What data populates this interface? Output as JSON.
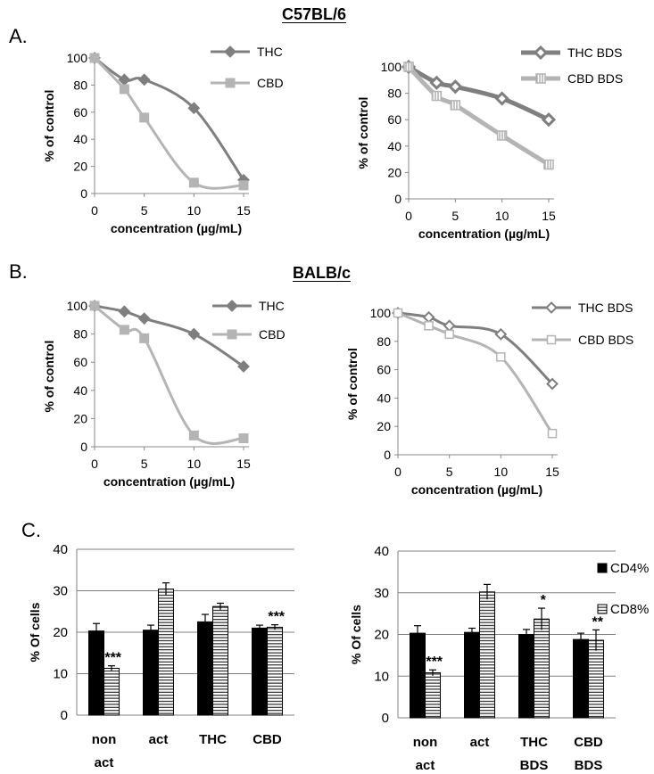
{
  "headings": {
    "strain1": "C57BL/6",
    "strain2": "BALB/c"
  },
  "panel_letters": {
    "a": "A.",
    "b": "B.",
    "c": "C."
  },
  "colors": {
    "thc": "#7f7f7f",
    "cbd": "#b4b4b4",
    "cd4": "#000000",
    "cd8": "#ffffff"
  },
  "chart_data": [
    {
      "id": "a_left",
      "type": "line",
      "title": "",
      "xlabel": "concentration (µg/mL)",
      "ylabel": "% of control",
      "xlim": [
        0,
        15
      ],
      "ylim": [
        0,
        100
      ],
      "xticks": [
        "0",
        "5",
        "10",
        "15"
      ],
      "yticks": [
        "0",
        "20",
        "40",
        "60",
        "80",
        "100"
      ],
      "legend_position": "top-right",
      "series": [
        {
          "name": "THC",
          "marker": "diamond-filled",
          "x": [
            0,
            3,
            5,
            10,
            15
          ],
          "values": [
            100,
            84,
            84,
            63,
            10
          ]
        },
        {
          "name": "CBD",
          "marker": "square-filled",
          "x": [
            0,
            3,
            5,
            10,
            15
          ],
          "values": [
            100,
            77,
            56,
            8,
            6
          ]
        }
      ]
    },
    {
      "id": "a_right",
      "type": "line",
      "title": "",
      "xlabel": "concentration (µg/mL)",
      "ylabel": "% of control",
      "xlim": [
        0,
        15
      ],
      "ylim": [
        0,
        100
      ],
      "xticks": [
        "0",
        "5",
        "10",
        "15"
      ],
      "yticks": [
        "0",
        "20",
        "40",
        "60",
        "80",
        "100"
      ],
      "legend_position": "top-right",
      "series": [
        {
          "name": "THC BDS",
          "marker": "diamond-hatched",
          "x": [
            0,
            3,
            5,
            10,
            15
          ],
          "values": [
            100,
            88,
            85,
            76,
            60
          ]
        },
        {
          "name": "CBD BDS",
          "marker": "square-hatched",
          "x": [
            0,
            3,
            5,
            10,
            15
          ],
          "values": [
            100,
            78,
            71,
            48,
            26
          ]
        }
      ]
    },
    {
      "id": "b_left",
      "type": "line",
      "title": "",
      "xlabel": "concentration (µg/mL)",
      "ylabel": "% of control",
      "xlim": [
        0,
        15
      ],
      "ylim": [
        0,
        100
      ],
      "xticks": [
        "0",
        "5",
        "10",
        "15"
      ],
      "yticks": [
        "0",
        "20",
        "40",
        "60",
        "80",
        "100"
      ],
      "legend_position": "top-right",
      "series": [
        {
          "name": "THC",
          "marker": "diamond-filled",
          "x": [
            0,
            3,
            5,
            10,
            15
          ],
          "values": [
            100,
            96,
            91,
            80,
            57
          ]
        },
        {
          "name": "CBD",
          "marker": "square-filled",
          "x": [
            0,
            3,
            5,
            10,
            15
          ],
          "values": [
            100,
            83,
            77,
            8,
            6
          ]
        }
      ]
    },
    {
      "id": "b_right",
      "type": "line",
      "title": "",
      "xlabel": "concentration (µg/mL)",
      "ylabel": "% of control",
      "xlim": [
        0,
        15
      ],
      "ylim": [
        0,
        100
      ],
      "xticks": [
        "0",
        "5",
        "10",
        "15"
      ],
      "yticks": [
        "0",
        "20",
        "40",
        "60",
        "80",
        "100"
      ],
      "legend_position": "top-right",
      "series": [
        {
          "name": "THC BDS",
          "marker": "diamond-open",
          "x": [
            0,
            3,
            5,
            10,
            15
          ],
          "values": [
            100,
            97,
            91,
            85,
            50
          ]
        },
        {
          "name": "CBD BDS",
          "marker": "square-open",
          "x": [
            0,
            3,
            5,
            10,
            15
          ],
          "values": [
            100,
            91,
            85,
            69,
            15
          ]
        }
      ]
    },
    {
      "id": "c_left",
      "type": "bar",
      "title": "",
      "xlabel": "",
      "ylabel": "% Of cells",
      "ylim": [
        0,
        40
      ],
      "yticks": [
        "0",
        "10",
        "20",
        "30",
        "40"
      ],
      "grid": true,
      "categories": [
        [
          "non",
          "act"
        ],
        [
          "act"
        ],
        [
          "THC"
        ],
        [
          "CBD"
        ]
      ],
      "series": [
        {
          "name": "CD4%",
          "values": [
            20.3,
            20.5,
            22.5,
            21.0
          ],
          "errors": [
            1.8,
            1.2,
            1.8,
            0.7
          ]
        },
        {
          "name": "CD8%",
          "values": [
            11.3,
            30.4,
            26.2,
            21.2
          ],
          "errors": [
            0.6,
            1.5,
            0.8,
            0.6
          ]
        }
      ],
      "annotations": [
        "***",
        "",
        "",
        "***"
      ]
    },
    {
      "id": "c_right",
      "type": "bar",
      "title": "",
      "xlabel": "",
      "ylabel": "% Of cells",
      "ylim": [
        0,
        40
      ],
      "yticks": [
        "0",
        "10",
        "20",
        "30",
        "40"
      ],
      "grid": true,
      "legend_position": "top-right",
      "categories": [
        [
          "non",
          "act"
        ],
        [
          "act"
        ],
        [
          "THC",
          "BDS"
        ],
        [
          "CBD",
          "BDS"
        ]
      ],
      "series": [
        {
          "name": "CD4%",
          "values": [
            20.3,
            20.5,
            20.0,
            18.8
          ],
          "errors": [
            1.8,
            1.0,
            1.2,
            1.5
          ]
        },
        {
          "name": "CD8%",
          "values": [
            10.8,
            30.2,
            23.7,
            18.6
          ],
          "errors": [
            0.7,
            1.8,
            2.6,
            2.5
          ]
        }
      ],
      "annotations": [
        "***",
        "",
        "*",
        "**"
      ]
    }
  ]
}
